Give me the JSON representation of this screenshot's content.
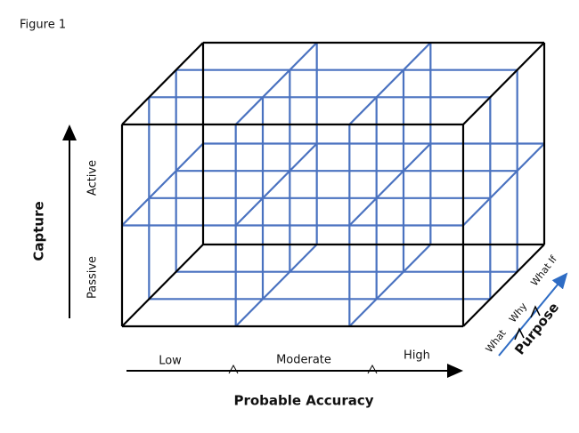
{
  "figure_label": "Figure 1",
  "vertical_axis": {
    "title": "Capture",
    "levels": [
      "Passive",
      "Active"
    ]
  },
  "horizontal_axis": {
    "title": "Probable Accuracy",
    "levels": [
      "Low",
      "Moderate",
      "High"
    ]
  },
  "depth_axis": {
    "title": "Purpose",
    "levels": [
      "What",
      "Why",
      "What If"
    ]
  }
}
